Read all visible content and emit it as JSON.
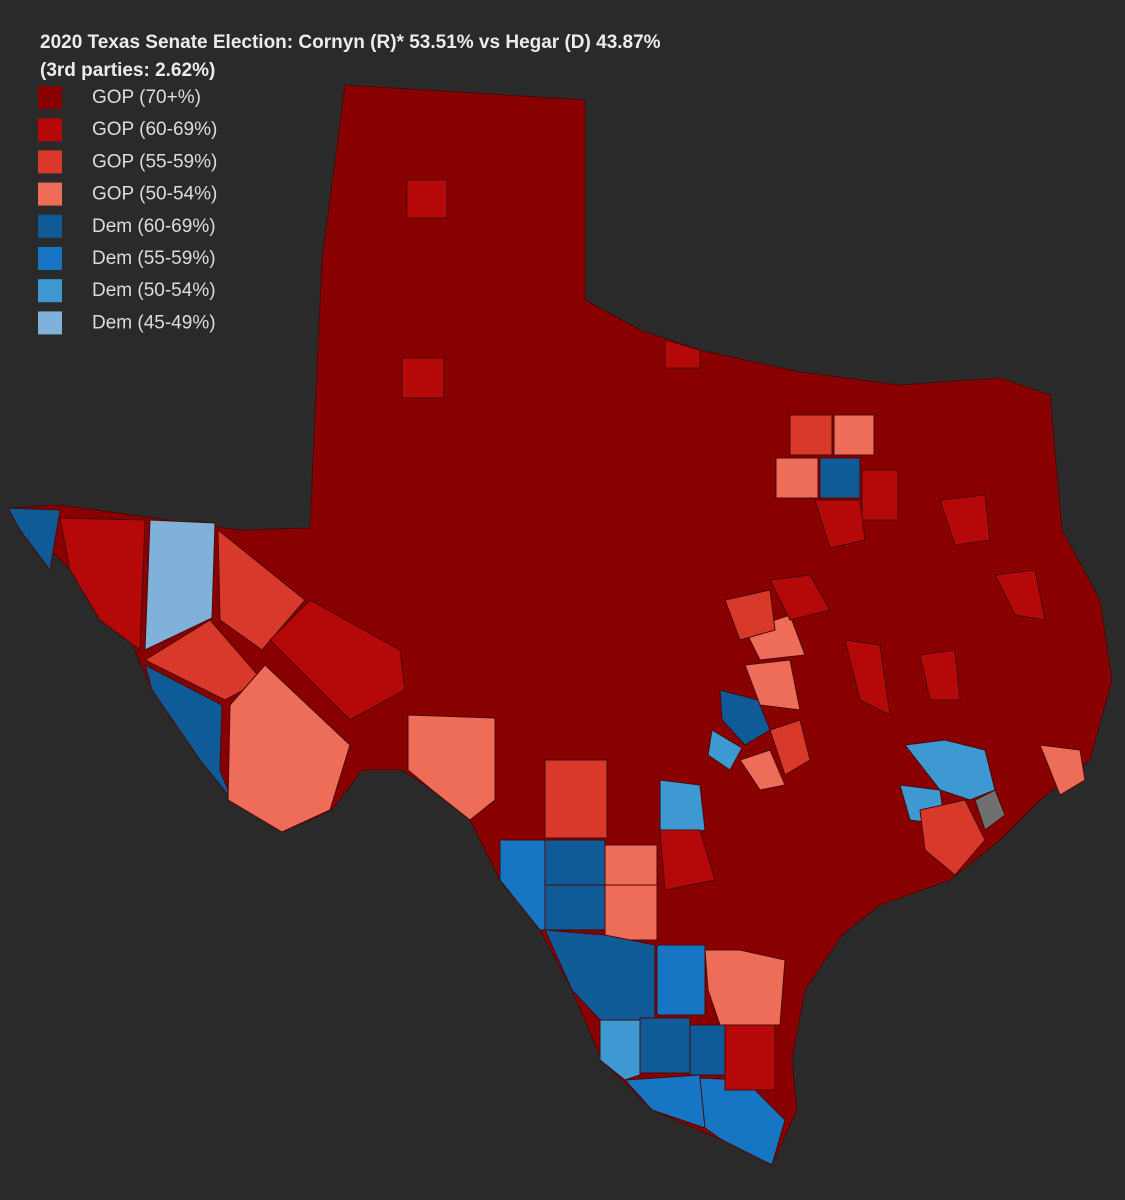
{
  "header": {
    "title": "2020 Texas Senate Election: Cornyn (R)* 53.51% vs Hegar (D) 43.87%",
    "subtitle": "(3rd parties: 2.62%)"
  },
  "legend": [
    {
      "label": "GOP (70+%)",
      "color": "#880000"
    },
    {
      "label": "GOP (60-69%)",
      "color": "#b50909"
    },
    {
      "label": "GOP (55-59%)",
      "color": "#d8392a"
    },
    {
      "label": "GOP (50-54%)",
      "color": "#ee6d58"
    },
    {
      "label": "Dem (60-69%)",
      "color": "#0f5b97"
    },
    {
      "label": "Dem (55-59%)",
      "color": "#1676c3"
    },
    {
      "label": "Dem (50-54%)",
      "color": "#3e99d3"
    },
    {
      "label": "Dem (45-49%)",
      "color": "#7fb1da"
    }
  ]
}
